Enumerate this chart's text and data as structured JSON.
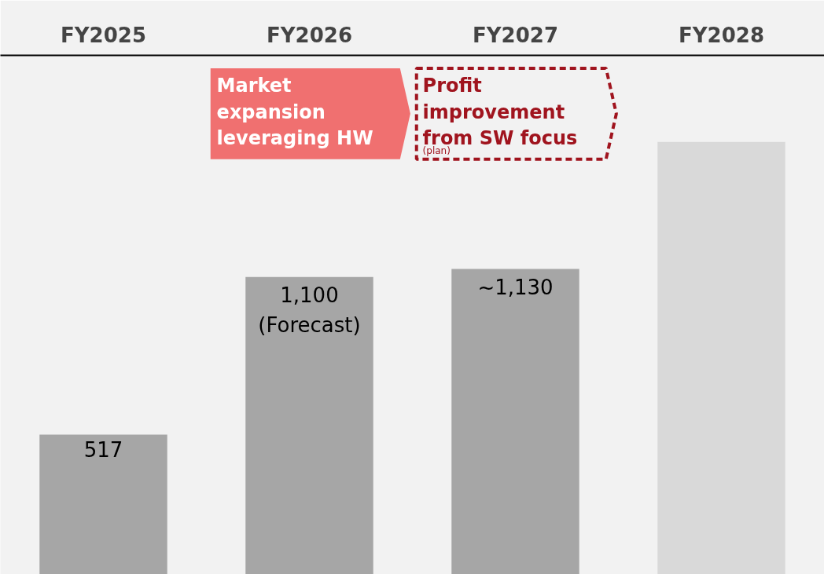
{
  "chart_data": {
    "type": "bar",
    "categories": [
      "FY2025",
      "FY2026",
      "FY2027",
      "FY2028"
    ],
    "values": [
      517,
      1100,
      1130,
      1600
    ],
    "colors": [
      "#a6a6a6",
      "#a6a6a6",
      "#a6a6a6",
      "#d9d9d9"
    ],
    "value_labels": [
      "517",
      "1,100\n(Forecast)",
      "~1,130",
      null
    ],
    "annotations": [
      "Market expansion leveraging HW",
      "Profit improvement from SW focus",
      "(plan)"
    ],
    "grid": false
  }
}
